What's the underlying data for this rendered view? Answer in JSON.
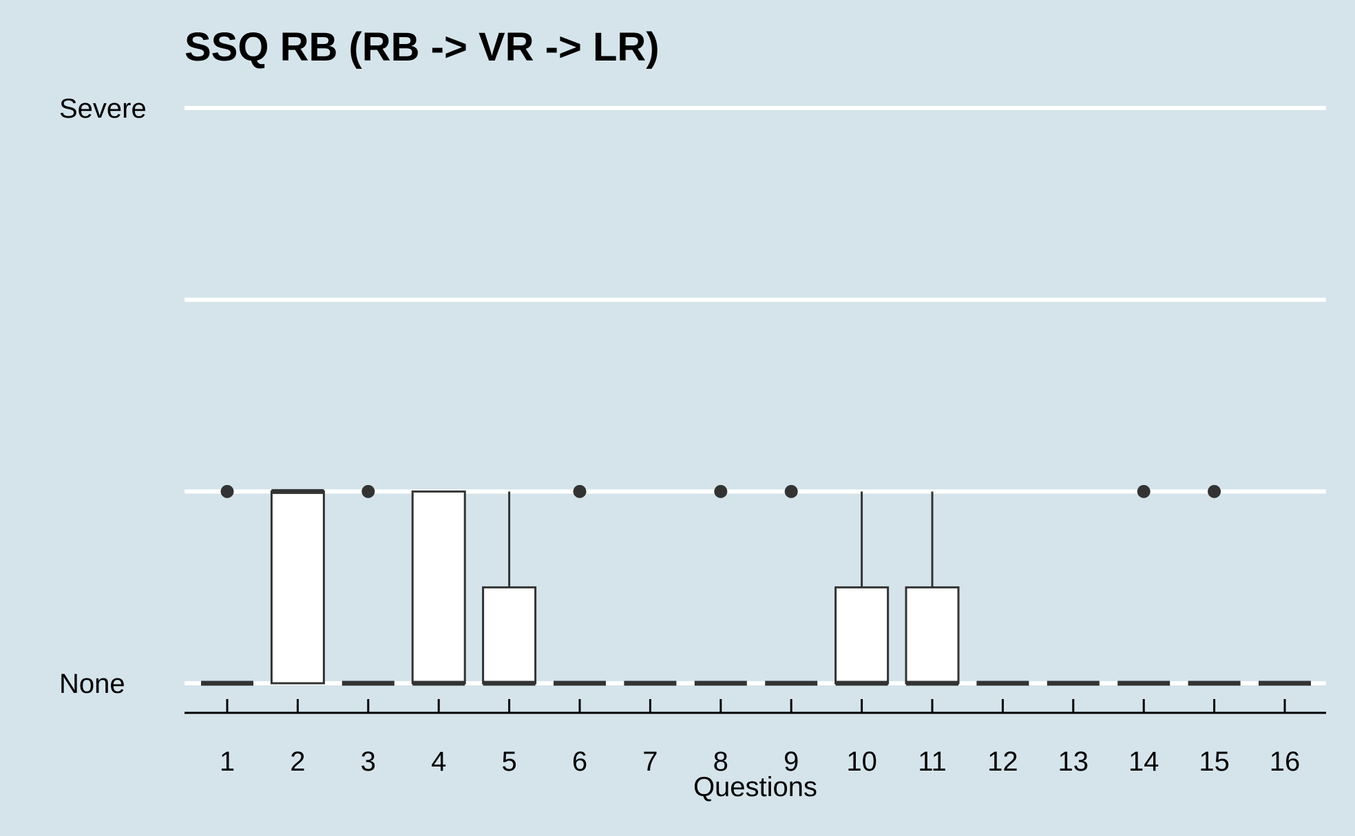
{
  "chart_data": {
    "type": "boxplot",
    "title": "SSQ RB (RB -> VR -> LR)",
    "xlabel": "Questions",
    "ylabel": "",
    "categories": [
      "1",
      "2",
      "3",
      "4",
      "5",
      "6",
      "7",
      "8",
      "9",
      "10",
      "11",
      "12",
      "13",
      "14",
      "15",
      "16"
    ],
    "y_tick_labels": [
      {
        "value": 0,
        "label": "None"
      },
      {
        "value": 3,
        "label": "Severe"
      }
    ],
    "ylim": [
      0,
      3
    ],
    "gridlines_y": [
      0,
      1,
      2,
      3
    ],
    "grid": true,
    "boxes": [
      {
        "q": "1",
        "min": 0,
        "q1": 0,
        "median": 0,
        "q3": 0,
        "max": 0,
        "outliers": [
          1
        ]
      },
      {
        "q": "2",
        "min": 0,
        "q1": 0,
        "median": 1,
        "q3": 1,
        "max": 1,
        "outliers": []
      },
      {
        "q": "3",
        "min": 0,
        "q1": 0,
        "median": 0,
        "q3": 0,
        "max": 0,
        "outliers": [
          1
        ]
      },
      {
        "q": "4",
        "min": 0,
        "q1": 0,
        "median": 0,
        "q3": 1,
        "max": 1,
        "outliers": []
      },
      {
        "q": "5",
        "min": 0,
        "q1": 0,
        "median": 0,
        "q3": 0.5,
        "max": 1,
        "outliers": []
      },
      {
        "q": "6",
        "min": 0,
        "q1": 0,
        "median": 0,
        "q3": 0,
        "max": 0,
        "outliers": [
          1
        ]
      },
      {
        "q": "7",
        "min": 0,
        "q1": 0,
        "median": 0,
        "q3": 0,
        "max": 0,
        "outliers": []
      },
      {
        "q": "8",
        "min": 0,
        "q1": 0,
        "median": 0,
        "q3": 0,
        "max": 0,
        "outliers": [
          1
        ]
      },
      {
        "q": "9",
        "min": 0,
        "q1": 0,
        "median": 0,
        "q3": 0,
        "max": 0,
        "outliers": [
          1
        ]
      },
      {
        "q": "10",
        "min": 0,
        "q1": 0,
        "median": 0,
        "q3": 0.5,
        "max": 1,
        "outliers": []
      },
      {
        "q": "11",
        "min": 0,
        "q1": 0,
        "median": 0,
        "q3": 0.5,
        "max": 1,
        "outliers": []
      },
      {
        "q": "12",
        "min": 0,
        "q1": 0,
        "median": 0,
        "q3": 0,
        "max": 0,
        "outliers": []
      },
      {
        "q": "13",
        "min": 0,
        "q1": 0,
        "median": 0,
        "q3": 0,
        "max": 0,
        "outliers": []
      },
      {
        "q": "14",
        "min": 0,
        "q1": 0,
        "median": 0,
        "q3": 0,
        "max": 0,
        "outliers": [
          1
        ]
      },
      {
        "q": "15",
        "min": 0,
        "q1": 0,
        "median": 0,
        "q3": 0,
        "max": 0,
        "outliers": [
          1
        ]
      },
      {
        "q": "16",
        "min": 0,
        "q1": 0,
        "median": 0,
        "q3": 0,
        "max": 0,
        "outliers": []
      }
    ],
    "colors": {
      "background": "#d5e4eb",
      "grid": "#ffffff",
      "box_fill": "#ffffff",
      "box_stroke": "#333333",
      "axis": "#000000"
    }
  }
}
